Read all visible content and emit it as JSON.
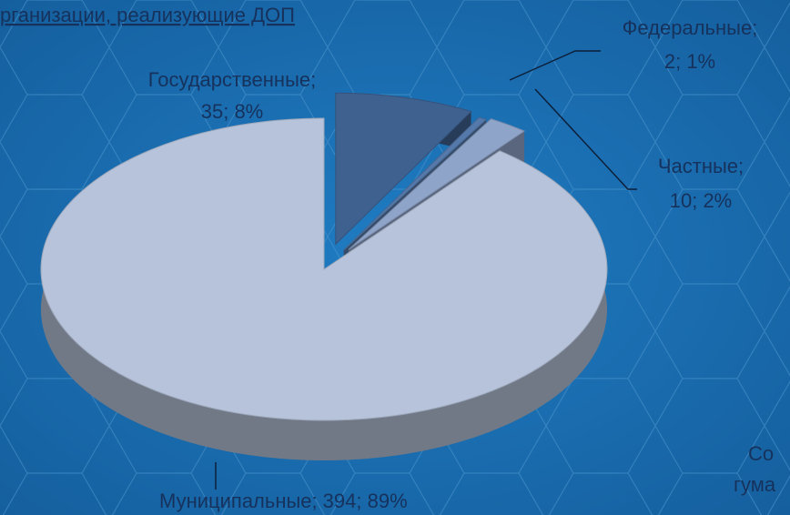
{
  "chart_data": {
    "type": "pie3d",
    "title": "рганизации, реализующие ДОП",
    "categories": [
      "Государственные;",
      "Федеральные;",
      "Частные;",
      "Муниципальные;"
    ],
    "values": [
      35,
      2,
      10,
      394
    ],
    "value_labels": [
      "35; 8%",
      "2; 1%",
      "10; 2%",
      "394; 89%"
    ],
    "colors": [
      "#3f6190",
      "#5579ab",
      "#8fa4c9",
      "#b6c3da"
    ],
    "annotations": [
      "Со",
      "гума"
    ]
  }
}
